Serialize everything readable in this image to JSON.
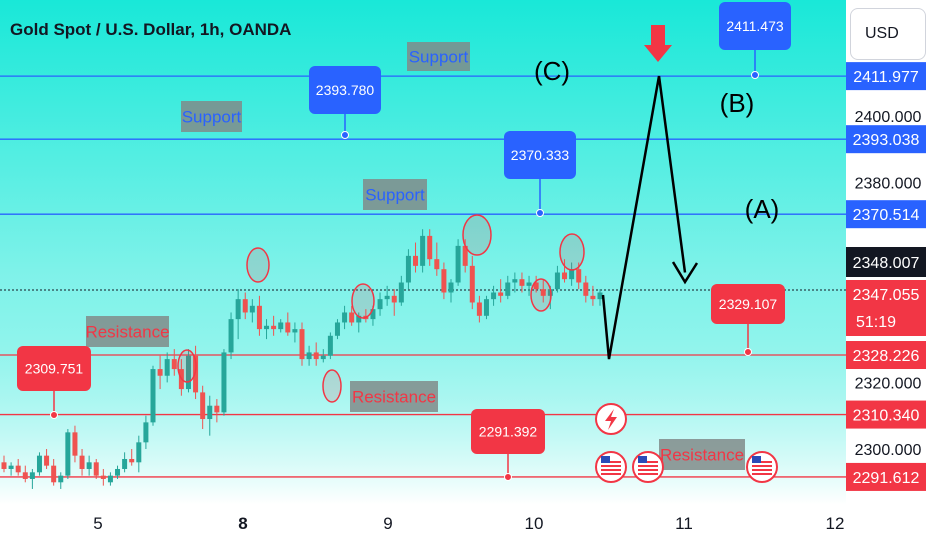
{
  "header": {
    "title": "Gold Spot / U.S. Dollar, 1h, OANDA",
    "currency": "USD"
  },
  "colors": {
    "bg_top": "#19e8d8",
    "bg_bottom": "#ffffff",
    "blue": "#2962ff",
    "red": "#f23645",
    "up": "#26a69a",
    "down": "#ef5350",
    "label_box": "#808b8a"
  },
  "icons": {
    "arrow": "red-down-arrow-icon",
    "flash": "lightning-icon",
    "flag": "us-flag-icon"
  },
  "chart_data": {
    "type": "candlestick",
    "y_axis": {
      "range": [
        2287,
        2420
      ],
      "ticks": [
        "2300.000",
        "2320.000",
        "2380.000",
        "2400.000"
      ]
    },
    "x_axis": {
      "ticks": [
        "5",
        "8",
        "9",
        "10",
        "11",
        "12"
      ],
      "bold": [
        "8"
      ]
    },
    "price_levels": [
      {
        "value": 2411.977,
        "label": "2411.977",
        "color": "blue"
      },
      {
        "value": 2393.038,
        "label": "2393.038",
        "color": "blue"
      },
      {
        "value": 2370.514,
        "label": "2370.514",
        "color": "blue"
      },
      {
        "value": 2328.226,
        "label": "2328.226",
        "color": "red"
      },
      {
        "value": 2310.34,
        "label": "2310.340",
        "color": "red"
      },
      {
        "value": 2291.612,
        "label": "2291.612",
        "color": "red"
      }
    ],
    "current_price": {
      "value": 2348.007,
      "label": "2348.007"
    },
    "last_price": {
      "value": 2347.055,
      "label": "2347.055",
      "countdown": "51:19"
    },
    "callouts": [
      {
        "text": "2411.473",
        "color": "blue"
      },
      {
        "text": "2393.780",
        "color": "blue"
      },
      {
        "text": "2370.333",
        "color": "blue"
      },
      {
        "text": "2329.107",
        "color": "red"
      },
      {
        "text": "2309.751",
        "color": "red"
      },
      {
        "text": "2291.392",
        "color": "red"
      }
    ],
    "zone_labels": [
      {
        "text": "Support",
        "kind": "support"
      },
      {
        "text": "Support",
        "kind": "support"
      },
      {
        "text": "Support",
        "kind": "support"
      },
      {
        "text": "Resistance",
        "kind": "resistance"
      },
      {
        "text": "Resistance",
        "kind": "resistance"
      },
      {
        "text": "Resistance",
        "kind": "resistance"
      }
    ],
    "wave_labels": [
      "(C)",
      "(B)",
      "(A)"
    ],
    "projection_path": [
      2327,
      2412,
      2353
    ],
    "candles_ohlc": [
      [
        2296,
        2298,
        2293,
        2294
      ],
      [
        2294,
        2296,
        2292,
        2295
      ],
      [
        2295,
        2297,
        2292,
        2293
      ],
      [
        2293,
        2295,
        2290,
        2291
      ],
      [
        2291,
        2294,
        2288,
        2293
      ],
      [
        2293,
        2299,
        2292,
        2298
      ],
      [
        2298,
        2300,
        2294,
        2295
      ],
      [
        2295,
        2297,
        2289,
        2290
      ],
      [
        2290,
        2293,
        2288,
        2292
      ],
      [
        2292,
        2306,
        2291,
        2305
      ],
      [
        2305,
        2307,
        2296,
        2298
      ],
      [
        2298,
        2300,
        2292,
        2294
      ],
      [
        2294,
        2298,
        2292,
        2296
      ],
      [
        2296,
        2297,
        2291,
        2292
      ],
      [
        2292,
        2294,
        2289,
        2291
      ],
      [
        2290,
        2293,
        2289,
        2292
      ],
      [
        2292,
        2295,
        2291,
        2294
      ],
      [
        2294,
        2299,
        2293,
        2297
      ],
      [
        2297,
        2300,
        2295,
        2296
      ],
      [
        2296,
        2304,
        2293,
        2302
      ],
      [
        2302,
        2310,
        2300,
        2308
      ],
      [
        2308,
        2325,
        2307,
        2324
      ],
      [
        2324,
        2328,
        2318,
        2322
      ],
      [
        2322,
        2329,
        2320,
        2327
      ],
      [
        2327,
        2330,
        2322,
        2324
      ],
      [
        2324,
        2327,
        2316,
        2318
      ],
      [
        2318,
        2330,
        2317,
        2328
      ],
      [
        2328,
        2331,
        2315,
        2317
      ],
      [
        2317,
        2319,
        2306,
        2309
      ],
      [
        2309,
        2316,
        2304,
        2313
      ],
      [
        2313,
        2315,
        2308,
        2311
      ],
      [
        2311,
        2330,
        2310,
        2329
      ],
      [
        2329,
        2341,
        2327,
        2339
      ],
      [
        2339,
        2348,
        2333,
        2345
      ],
      [
        2345,
        2347,
        2339,
        2341
      ],
      [
        2341,
        2345,
        2338,
        2343
      ],
      [
        2343,
        2346,
        2334,
        2336
      ],
      [
        2336,
        2339,
        2333,
        2337
      ],
      [
        2337,
        2340,
        2334,
        2336
      ],
      [
        2336,
        2339,
        2335,
        2338
      ],
      [
        2338,
        2341,
        2334,
        2335
      ],
      [
        2335,
        2338,
        2332,
        2336
      ],
      [
        2336,
        2338,
        2325,
        2327
      ],
      [
        2327,
        2331,
        2325,
        2329
      ],
      [
        2329,
        2332,
        2325,
        2327
      ],
      [
        2327,
        2330,
        2326,
        2328
      ],
      [
        2328,
        2335,
        2327,
        2334
      ],
      [
        2334,
        2339,
        2333,
        2338
      ],
      [
        2338,
        2343,
        2336,
        2341
      ],
      [
        2341,
        2343,
        2337,
        2338
      ],
      [
        2338,
        2341,
        2335,
        2340
      ],
      [
        2340,
        2342,
        2338,
        2339
      ],
      [
        2339,
        2343,
        2337,
        2342
      ],
      [
        2342,
        2347,
        2340,
        2345
      ],
      [
        2345,
        2349,
        2343,
        2346
      ],
      [
        2346,
        2348,
        2340,
        2344
      ],
      [
        2344,
        2352,
        2343,
        2350
      ],
      [
        2350,
        2360,
        2348,
        2358
      ],
      [
        2358,
        2362,
        2353,
        2355
      ],
      [
        2355,
        2366,
        2353,
        2364
      ],
      [
        2364,
        2366,
        2355,
        2357
      ],
      [
        2357,
        2362,
        2352,
        2354
      ],
      [
        2354,
        2356,
        2345,
        2347
      ],
      [
        2347,
        2351,
        2344,
        2350
      ],
      [
        2350,
        2363,
        2349,
        2361
      ],
      [
        2361,
        2363,
        2353,
        2355
      ],
      [
        2355,
        2358,
        2342,
        2344
      ],
      [
        2344,
        2346,
        2338,
        2340
      ],
      [
        2340,
        2346,
        2339,
        2345
      ],
      [
        2345,
        2349,
        2343,
        2347
      ],
      [
        2347,
        2351,
        2344,
        2346
      ],
      [
        2346,
        2352,
        2345,
        2350
      ],
      [
        2350,
        2353,
        2347,
        2351
      ],
      [
        2351,
        2353,
        2347,
        2349
      ],
      [
        2349,
        2352,
        2346,
        2350
      ],
      [
        2350,
        2352,
        2347,
        2348
      ],
      [
        2348,
        2351,
        2344,
        2346
      ],
      [
        2346,
        2349,
        2342,
        2348
      ],
      [
        2348,
        2355,
        2347,
        2353
      ],
      [
        2353,
        2357,
        2350,
        2351
      ],
      [
        2351,
        2356,
        2349,
        2354
      ],
      [
        2354,
        2356,
        2348,
        2350
      ],
      [
        2350,
        2352,
        2344,
        2346
      ],
      [
        2346,
        2349,
        2343,
        2345
      ],
      [
        2345,
        2348,
        2343,
        2347
      ]
    ]
  }
}
